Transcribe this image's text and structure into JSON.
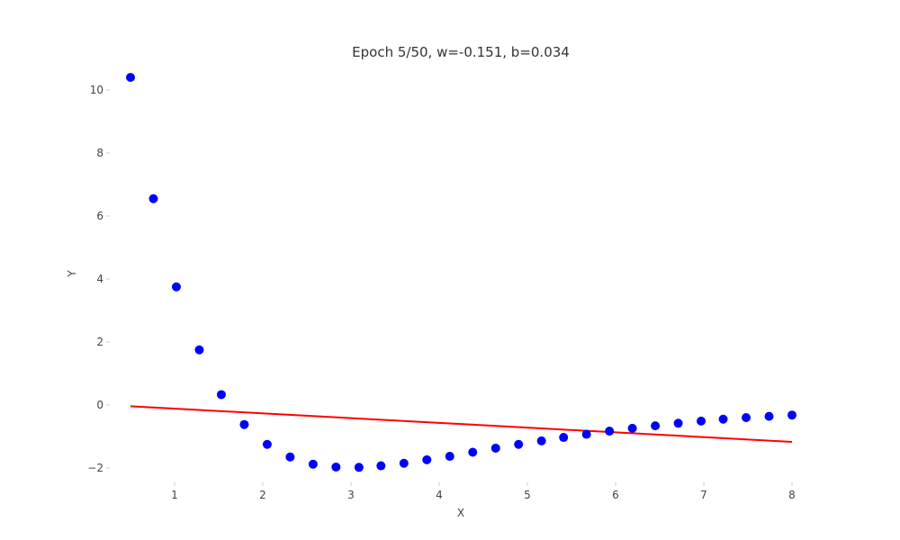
{
  "chart_data": {
    "type": "scatter",
    "title": "Epoch 5/50, w=-0.151, b=0.034",
    "xlabel": "X",
    "ylabel": "Y",
    "xlim": [
      0.5,
      8.0
    ],
    "ylim": [
      -2.2,
      10.6
    ],
    "xticks": [
      1,
      2,
      3,
      4,
      5,
      6,
      7,
      8
    ],
    "yticks": [
      -2,
      0,
      2,
      4,
      6,
      8,
      10
    ],
    "grid": false,
    "legend": "none",
    "colors": {
      "points": "#0000ff",
      "line": "#ff0000"
    },
    "series": [
      {
        "kind": "scatter",
        "x": [
          0.5,
          0.76,
          1.02,
          1.28,
          1.53,
          1.79,
          2.05,
          2.31,
          2.57,
          2.83,
          3.09,
          3.34,
          3.6,
          3.86,
          4.12,
          4.38,
          4.64,
          4.9,
          5.16,
          5.41,
          5.67,
          5.93,
          6.19,
          6.45,
          6.71,
          6.97,
          7.22,
          7.48,
          7.74,
          8.0
        ],
        "y": [
          10.4,
          6.55,
          3.75,
          1.75,
          0.33,
          -0.62,
          -1.25,
          -1.65,
          -1.88,
          -1.97,
          -1.98,
          -1.93,
          -1.85,
          -1.74,
          -1.63,
          -1.5,
          -1.37,
          -1.25,
          -1.14,
          -1.03,
          -0.93,
          -0.83,
          -0.74,
          -0.66,
          -0.58,
          -0.51,
          -0.45,
          -0.4,
          -0.36,
          -0.32
        ]
      },
      {
        "kind": "line",
        "x": [
          0.5,
          8.0
        ],
        "y": [
          -0.04,
          -1.17
        ]
      }
    ]
  }
}
